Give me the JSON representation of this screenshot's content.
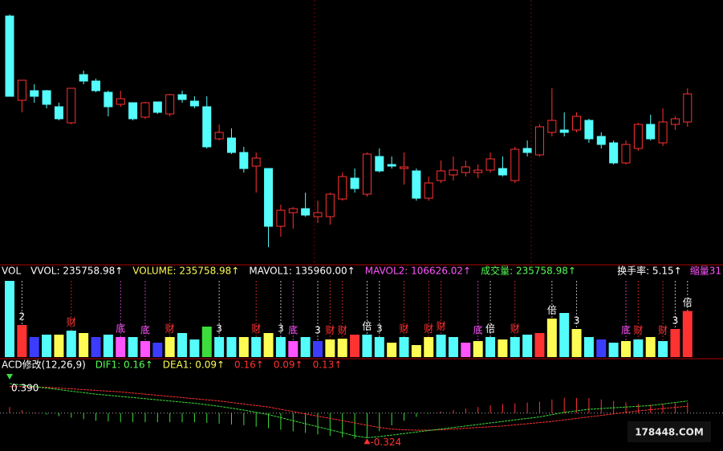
{
  "chart_data": [
    {
      "type": "candlestick",
      "up_color": "#ff3232",
      "down_color": "#54fcfc",
      "ylim": [
        0,
        330
      ],
      "open": [
        310,
        205,
        217,
        217,
        197,
        177,
        237,
        229,
        215,
        200,
        202,
        184,
        203,
        188,
        212,
        204,
        197,
        157,
        158,
        140,
        123,
        120,
        48,
        65,
        70,
        60,
        60,
        82,
        108,
        88,
        135,
        125,
        120,
        117,
        83,
        105,
        112,
        115,
        115,
        118,
        120,
        105,
        145,
        137,
        165,
        168,
        168,
        180,
        160,
        152,
        127,
        145,
        175,
        152,
        175,
        178
      ],
      "high": [
        312,
        230,
        225,
        218,
        202,
        220,
        242,
        232,
        217,
        217,
        202,
        203,
        203,
        213,
        217,
        210,
        210,
        175,
        170,
        147,
        140,
        120,
        75,
        72,
        90,
        80,
        90,
        115,
        120,
        140,
        145,
        135,
        140,
        120,
        110,
        130,
        135,
        130,
        125,
        140,
        135,
        147,
        155,
        175,
        220,
        190,
        190,
        182,
        165,
        155,
        155,
        177,
        187,
        195,
        185,
        220
      ],
      "low": [
        210,
        190,
        202,
        195,
        180,
        175,
        225,
        215,
        185,
        197,
        180,
        182,
        188,
        185,
        202,
        195,
        145,
        155,
        138,
        115,
        90,
        22,
        35,
        45,
        60,
        52,
        50,
        80,
        90,
        85,
        115,
        120,
        100,
        80,
        80,
        102,
        105,
        110,
        108,
        115,
        110,
        102,
        135,
        135,
        160,
        160,
        165,
        152,
        145,
        125,
        125,
        142,
        155,
        148,
        168,
        172
      ],
      "close": [
        210,
        230,
        210,
        200,
        182,
        220,
        229,
        217,
        197,
        207,
        182,
        202,
        190,
        212,
        206,
        198,
        147,
        165,
        140,
        120,
        133,
        48,
        68,
        70,
        62,
        65,
        88,
        110,
        95,
        138,
        117,
        123,
        122,
        83,
        102,
        117,
        118,
        122,
        118,
        132,
        112,
        144,
        140,
        172,
        180,
        165,
        185,
        157,
        150,
        127,
        150,
        175,
        157,
        178,
        182,
        213
      ]
    },
    {
      "type": "bar",
      "ylim": [
        0,
        410000
      ],
      "header": [
        {
          "text": "VOL",
          "color": "#ffffff"
        },
        {
          "text": "VVOL: 235758.98↑",
          "color": "#ffffff"
        },
        {
          "text": "VOLUME: 235758.98↑",
          "color": "#fcfc54"
        },
        {
          "text": "MAVOL1: 135960.00↑",
          "color": "#ffffff"
        },
        {
          "text": "MAVOL2: 106626.02↑",
          "color": "#ff54ff"
        },
        {
          "text": "成交量: 235758.98↑",
          "color": "#54fc54"
        }
      ],
      "header_right": [
        {
          "text": "换手率: 5.15↑",
          "color": "#ffffff"
        },
        {
          "text": "缩量31",
          "color": "#ff54ff"
        }
      ],
      "values": [
        389500,
        164000,
        102500,
        114800,
        114800,
        135300,
        123000,
        102500,
        114800,
        102500,
        102500,
        82000,
        73800,
        102500,
        123000,
        90200,
        155800,
        102500,
        102500,
        102500,
        102500,
        123000,
        102500,
        82000,
        102500,
        82000,
        90200,
        94300,
        114800,
        114800,
        102500,
        73800,
        102500,
        61500,
        102500,
        114800,
        102500,
        73800,
        82000,
        102500,
        90200,
        102500,
        114800,
        123000,
        196800,
        225500,
        143500,
        102500,
        90200,
        73800,
        82000,
        90200,
        102500,
        82000,
        143500,
        235758.98
      ],
      "colors": [
        "#54fcfc",
        "#ff3232",
        "#3c3cff",
        "#54fcfc",
        "#fcfc54",
        "#54fcfc",
        "#fcfc54",
        "#3c3cff",
        "#54fcfc",
        "#ff54ff",
        "#54fcfc",
        "#ff54ff",
        "#3c3cff",
        "#fcfc54",
        "#54fcfc",
        "#54fcfc",
        "#3cdc3c",
        "#54fcfc",
        "#54fcfc",
        "#fcfc54",
        "#54fcfc",
        "#fcfc54",
        "#54fcfc",
        "#ff54ff",
        "#54fcfc",
        "#3c3cff",
        "#fcfc54",
        "#fcfc54",
        "#ff3232",
        "#54fcfc",
        "#54fcfc",
        "#fcfc54",
        "#54fcfc",
        "#fcfc54",
        "#fcfc54",
        "#54fcfc",
        "#54fcfc",
        "#ff54ff",
        "#fcfc54",
        "#54fcfc",
        "#fcfc54",
        "#54fcfc",
        "#54fcfc",
        "#ff3232",
        "#fcfc54",
        "#54fcfc",
        "#fcfc54",
        "#54fcfc",
        "#3c3cff",
        "#54fcfc",
        "#fcfc54",
        "#54fcfc",
        "#fcfc54",
        "#54fcfc",
        "#ff3232",
        "#ff3232"
      ],
      "markers": [
        null,
        {
          "text": "2",
          "color": "#ffffff"
        },
        null,
        null,
        null,
        {
          "text": "财",
          "color": "#ff3232"
        },
        null,
        null,
        null,
        {
          "text": "底",
          "color": "#ff54ff"
        },
        null,
        {
          "text": "底",
          "color": "#ff54ff"
        },
        null,
        {
          "text": "财",
          "color": "#ff3232"
        },
        null,
        null,
        null,
        {
          "text": "3",
          "color": "#ffffff"
        },
        null,
        null,
        {
          "text": "财",
          "color": "#ff3232"
        },
        null,
        {
          "text": "3",
          "color": "#ffffff"
        },
        {
          "text": "底",
          "color": "#ff54ff"
        },
        null,
        {
          "text": "3",
          "color": "#ffffff"
        },
        {
          "text": "财",
          "color": "#ff3232"
        },
        {
          "text": "财",
          "color": "#ff3232"
        },
        null,
        {
          "text": "倍",
          "color": "#ffffff"
        },
        {
          "text": "3",
          "color": "#ffffff"
        },
        null,
        {
          "text": "财",
          "color": "#ff3232"
        },
        null,
        {
          "text": "财",
          "color": "#ff3232"
        },
        {
          "text": "财",
          "color": "#ff3232"
        },
        null,
        null,
        {
          "text": "底",
          "color": "#ff54ff"
        },
        {
          "text": "倍",
          "color": "#ffffff"
        },
        null,
        {
          "text": "财",
          "color": "#ff3232"
        },
        null,
        null,
        {
          "text": "倍",
          "color": "#ffffff"
        },
        null,
        {
          "text": "3",
          "color": "#ffffff"
        },
        null,
        null,
        null,
        {
          "text": "底",
          "color": "#ff54ff"
        },
        {
          "text": "财",
          "color": "#ff3232"
        },
        null,
        {
          "text": "财",
          "color": "#ff3232"
        },
        {
          "text": "3",
          "color": "#ffffff"
        },
        {
          "text": "倍",
          "color": "#ffffff"
        }
      ]
    },
    {
      "type": "macd",
      "ylim": [
        -0.5,
        0.58
      ],
      "header": [
        {
          "text": "ACD修改(12,26,9)",
          "color": "#ffffff"
        },
        {
          "text": "DIF1: 0.16↑",
          "color": "#54fc54"
        },
        {
          "text": "DEA1: 0.09↑",
          "color": "#fcfc54"
        },
        {
          "text": "0.16↑",
          "color": "#ff3232"
        },
        {
          "text": "0.09↑",
          "color": "#ff3232"
        },
        {
          "text": "0.13↑",
          "color": "#ff3232"
        }
      ],
      "max_label": "0.390",
      "min_label": "-0.324",
      "watermark": "178448.COM",
      "dif": {
        "color": "#3cdc3c",
        "values": [
          0.39,
          0.37,
          0.35,
          0.33,
          0.31,
          0.29,
          0.27,
          0.25,
          0.235,
          0.22,
          0.205,
          0.19,
          0.175,
          0.16,
          0.145,
          0.13,
          0.11,
          0.09,
          0.065,
          0.04,
          0.01,
          -0.02,
          -0.06,
          -0.1,
          -0.14,
          -0.18,
          -0.22,
          -0.26,
          -0.3,
          -0.324,
          -0.31,
          -0.29,
          -0.27,
          -0.25,
          -0.23,
          -0.21,
          -0.19,
          -0.17,
          -0.15,
          -0.13,
          -0.11,
          -0.09,
          -0.07,
          -0.05,
          -0.02,
          0.01,
          0.03,
          0.05,
          0.06,
          0.07,
          0.08,
          0.09,
          0.1,
          0.12,
          0.14,
          0.16
        ]
      },
      "dea": {
        "color": "#ff3232",
        "values": [
          0.35,
          0.35,
          0.345,
          0.34,
          0.33,
          0.32,
          0.31,
          0.3,
          0.29,
          0.28,
          0.265,
          0.25,
          0.235,
          0.22,
          0.205,
          0.19,
          0.175,
          0.16,
          0.14,
          0.12,
          0.1,
          0.08,
          0.05,
          0.02,
          -0.01,
          -0.04,
          -0.07,
          -0.1,
          -0.13,
          -0.16,
          -0.19,
          -0.21,
          -0.22,
          -0.225,
          -0.225,
          -0.22,
          -0.21,
          -0.2,
          -0.19,
          -0.18,
          -0.17,
          -0.155,
          -0.14,
          -0.125,
          -0.11,
          -0.09,
          -0.07,
          -0.05,
          -0.03,
          -0.01,
          0.01,
          0.03,
          0.045,
          0.06,
          0.075,
          0.09
        ]
      },
      "histogram": {
        "pos_color": "#ff3232",
        "neg_color": "#3cdc3c",
        "values": [
          0.08,
          0.04,
          0.01,
          -0.02,
          -0.04,
          -0.06,
          -0.08,
          -0.1,
          -0.11,
          -0.12,
          -0.12,
          -0.12,
          -0.12,
          -0.12,
          -0.12,
          -0.12,
          -0.13,
          -0.14,
          -0.15,
          -0.16,
          -0.18,
          -0.2,
          -0.22,
          -0.24,
          -0.26,
          -0.28,
          -0.3,
          -0.32,
          -0.34,
          -0.33,
          -0.24,
          -0.16,
          -0.1,
          -0.05,
          -0.01,
          0.02,
          0.04,
          0.06,
          0.08,
          0.1,
          0.12,
          0.13,
          0.14,
          0.15,
          0.18,
          0.2,
          0.2,
          0.2,
          0.18,
          0.16,
          0.14,
          0.12,
          0.11,
          0.12,
          0.13,
          0.14
        ]
      }
    }
  ]
}
